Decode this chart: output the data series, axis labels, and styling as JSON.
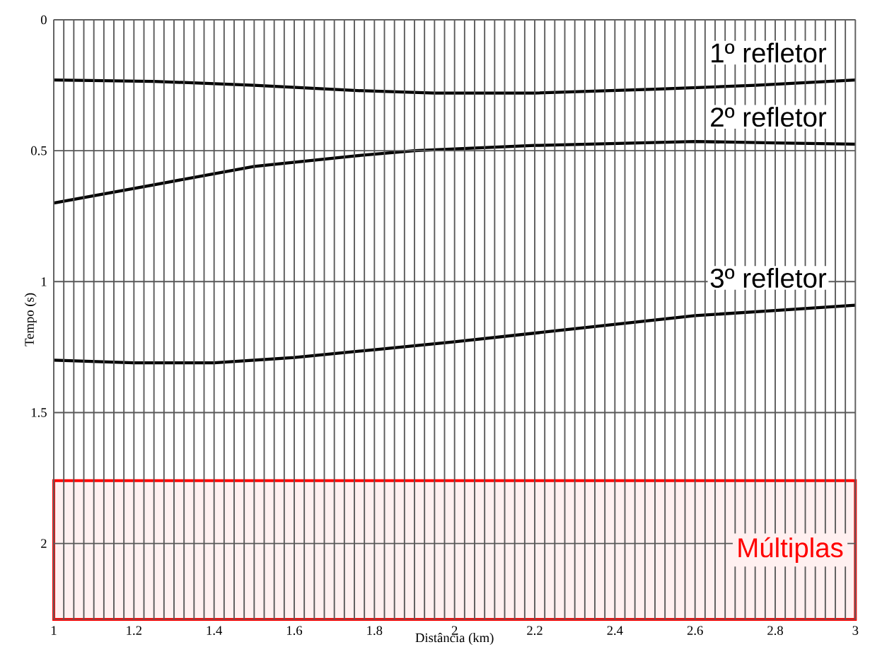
{
  "chart_data": {
    "type": "line",
    "xlabel": "Distância (km)",
    "ylabel": "Tempo (s)",
    "series": [
      {
        "color": "#000000",
        "x": [
          1,
          1.25,
          1.5,
          1.75,
          1.95,
          2.2,
          2.5,
          2.75,
          3
        ],
        "values": [
          0.23,
          0.235,
          0.25,
          0.27,
          0.28,
          0.28,
          0.265,
          0.25,
          0.23
        ]
      },
      {
        "color": "#000000",
        "x": [
          1,
          1.25,
          1.5,
          1.75,
          1.9,
          2.2,
          2.6,
          2.8,
          3
        ],
        "values": [
          0.7,
          0.63,
          0.56,
          0.52,
          0.5,
          0.48,
          0.465,
          0.47,
          0.475
        ]
      },
      {
        "color": "#000000",
        "x": [
          1,
          1.2,
          1.4,
          1.6,
          1.8,
          2.0,
          2.3,
          2.6,
          2.8,
          3
        ],
        "values": [
          1.3,
          1.31,
          1.31,
          1.29,
          1.26,
          1.23,
          1.18,
          1.13,
          1.11,
          1.09
        ]
      }
    ],
    "xlim": [
      1,
      3
    ],
    "ylim": [
      2.29,
      0
    ],
    "xticks": [
      1,
      {
        "value": 1.025,
        "label": null
      },
      {
        "value": 1.05,
        "label": null
      },
      {
        "value": 1.075,
        "label": null
      },
      {
        "value": 1.1,
        "label": null
      },
      {
        "value": 1.125,
        "label": null
      },
      {
        "value": 1.15,
        "label": null
      },
      {
        "value": 1.175,
        "label": null
      },
      1.2,
      {
        "value": 1.225,
        "label": null
      },
      {
        "value": 1.25,
        "label": null
      },
      {
        "value": 1.275,
        "label": null
      },
      {
        "value": 1.3,
        "label": null
      },
      {
        "value": 1.325,
        "label": null
      },
      {
        "value": 1.35,
        "label": null
      },
      {
        "value": 1.375,
        "label": null
      },
      1.4,
      {
        "value": 1.425,
        "label": null
      },
      {
        "value": 1.45,
        "label": null
      },
      {
        "value": 1.475,
        "label": null
      },
      {
        "value": 1.5,
        "label": null
      },
      {
        "value": 1.525,
        "label": null
      },
      {
        "value": 1.55,
        "label": null
      },
      {
        "value": 1.575,
        "label": null
      },
      1.6,
      {
        "value": 1.625,
        "label": null
      },
      {
        "value": 1.65,
        "label": null
      },
      {
        "value": 1.675,
        "label": null
      },
      {
        "value": 1.7,
        "label": null
      },
      {
        "value": 1.725,
        "label": null
      },
      {
        "value": 1.75,
        "label": null
      },
      {
        "value": 1.775,
        "label": null
      },
      1.8,
      {
        "value": 1.825,
        "label": null
      },
      {
        "value": 1.85,
        "label": null
      },
      {
        "value": 1.875,
        "label": null
      },
      {
        "value": 1.9,
        "label": null
      },
      {
        "value": 1.925,
        "label": null
      },
      {
        "value": 1.95,
        "label": null
      },
      {
        "value": 1.975,
        "label": null
      },
      2,
      {
        "value": 2.025,
        "label": null
      },
      {
        "value": 2.05,
        "label": null
      },
      {
        "value": 2.075,
        "label": null
      },
      {
        "value": 2.1,
        "label": null
      },
      {
        "value": 2.125,
        "label": null
      },
      {
        "value": 2.15,
        "label": null
      },
      {
        "value": 2.175,
        "label": null
      },
      2.2,
      {
        "value": 2.225,
        "label": null
      },
      {
        "value": 2.25,
        "label": null
      },
      {
        "value": 2.275,
        "label": null
      },
      {
        "value": 2.3,
        "label": null
      },
      {
        "value": 2.325,
        "label": null
      },
      {
        "value": 2.35,
        "label": null
      },
      {
        "value": 2.375,
        "label": null
      },
      2.4,
      {
        "value": 2.425,
        "label": null
      },
      {
        "value": 2.45,
        "label": null
      },
      {
        "value": 2.475,
        "label": null
      },
      {
        "value": 2.5,
        "label": null
      },
      {
        "value": 2.525,
        "label": null
      },
      {
        "value": 2.55,
        "label": null
      },
      {
        "value": 2.575,
        "label": null
      },
      2.6,
      {
        "value": 2.625,
        "label": null
      },
      {
        "value": 2.65,
        "label": null
      },
      {
        "value": 2.675,
        "label": null
      },
      {
        "value": 2.7,
        "label": null
      },
      {
        "value": 2.725,
        "label": null
      },
      {
        "value": 2.75,
        "label": null
      },
      {
        "value": 2.775,
        "label": null
      },
      2.8,
      {
        "value": 2.825,
        "label": null
      },
      {
        "value": 2.85,
        "label": null
      },
      {
        "value": 2.875,
        "label": null
      },
      {
        "value": 2.9,
        "label": null
      },
      {
        "value": 2.925,
        "label": null
      },
      {
        "value": 2.95,
        "label": null
      },
      {
        "value": 2.975,
        "label": null
      },
      3
    ],
    "yticks": [
      0,
      0.5,
      1,
      1.5,
      2
    ],
    "grid": true,
    "marker": "none",
    "line_style": "solid",
    "bands": [
      {
        "axis": "y",
        "from": 1.76,
        "to": 2.29,
        "label": "Múltiplas",
        "color": "#ff0000"
      }
    ],
    "annotations": [
      "1º refletor",
      "2º refletor",
      "3º refletor"
    ]
  }
}
